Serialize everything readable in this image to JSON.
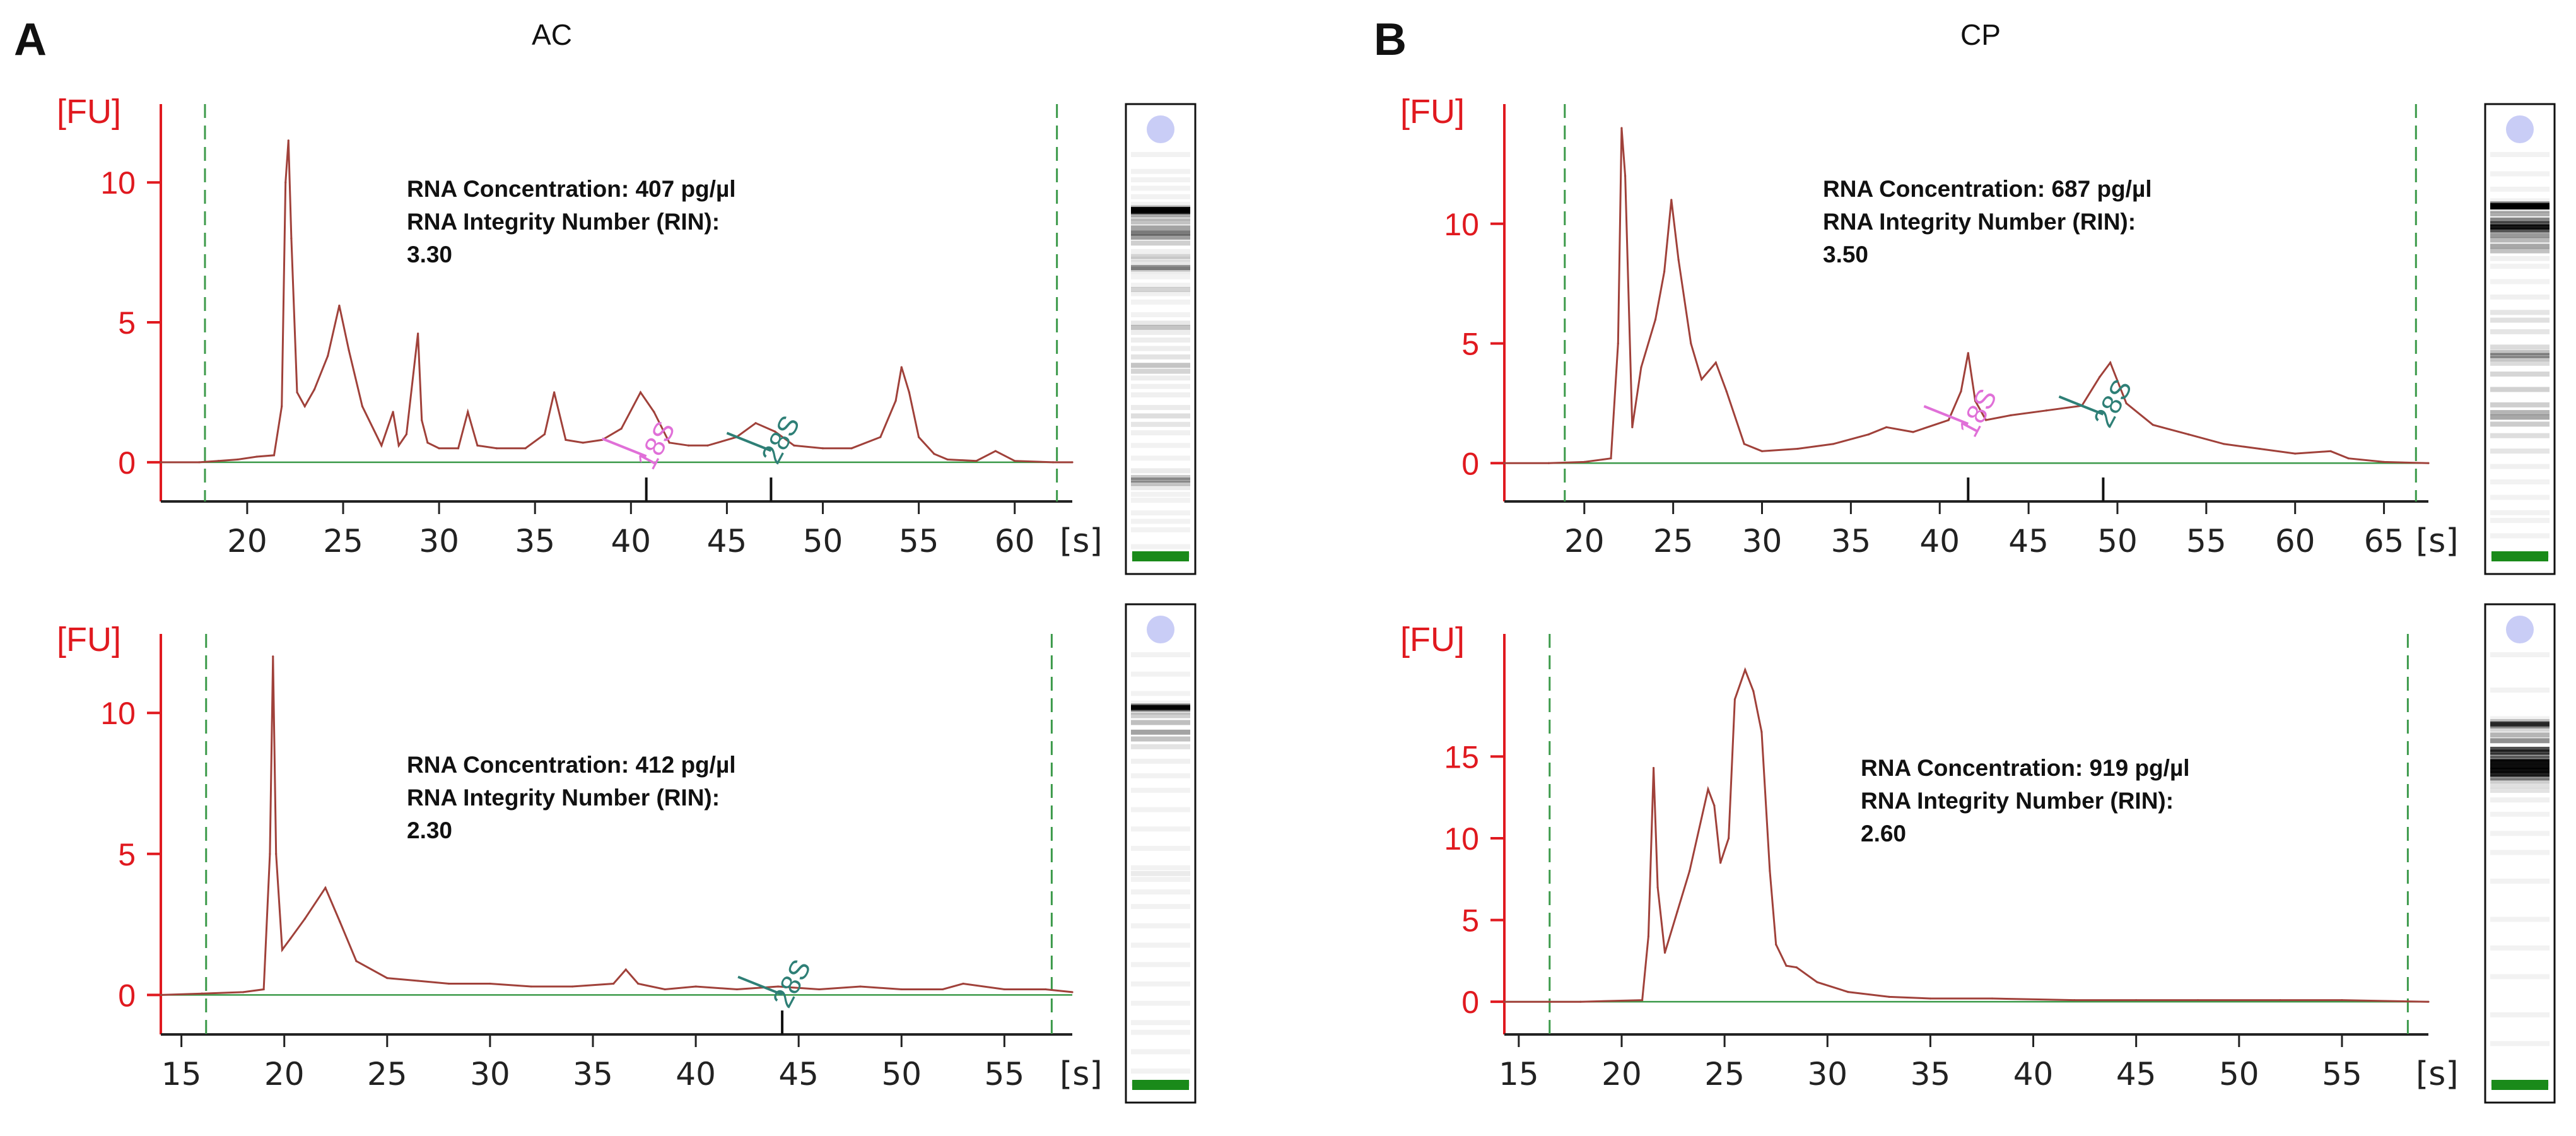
{
  "panels": {
    "A": {
      "letter": "A",
      "title": "AC"
    },
    "B": {
      "letter": "B",
      "title": "CP"
    }
  },
  "colors": {
    "trace": "#a0413a",
    "axis": "#e0191f",
    "baseline": "#3c9a4a",
    "cutoff": "#3c9a4a",
    "marker18S": "#e070d8",
    "marker28S": "#2e7f76",
    "lower_marker_band": "#1a8a1a"
  },
  "chart_data": [
    {
      "id": "ac-top",
      "type": "line",
      "panel": "A",
      "sample": "AC",
      "xlabel": "[s]",
      "ylabel": "[FU]",
      "xlim": [
        15.5,
        63
      ],
      "ylim": [
        -1.4,
        12.8
      ],
      "xticks": [
        20,
        25,
        30,
        35,
        40,
        45,
        50,
        55,
        60
      ],
      "yticks": [
        0,
        5,
        10
      ],
      "cutoffs": [
        17.8,
        62.2
      ],
      "info": [
        "RNA Concentration: 407 pg/µl",
        "RNA Integrity Number (RIN):",
        "3.30"
      ],
      "markers": [
        {
          "label": "18S",
          "x": 40.8,
          "anchor_y": 0.35,
          "color_key": "marker18S"
        },
        {
          "label": "28S",
          "x": 47.3,
          "anchor_y": 0.55,
          "color_key": "marker28S"
        }
      ],
      "series": [
        {
          "name": "electropherogram",
          "x": [
            15.5,
            17.5,
            18.5,
            19.5,
            20.5,
            21.4,
            21.8,
            22.0,
            22.15,
            22.3,
            22.6,
            23.0,
            23.5,
            24.2,
            24.8,
            25.3,
            26.0,
            27.0,
            27.6,
            27.9,
            28.3,
            28.9,
            29.1,
            29.4,
            30.0,
            31.0,
            31.5,
            32.0,
            33.0,
            34.5,
            35.5,
            36.0,
            36.6,
            37.5,
            38.5,
            39.5,
            40.5,
            41.2,
            42.0,
            43.0,
            44.0,
            45.5,
            46.5,
            47.5,
            48.5,
            50.0,
            51.5,
            53.0,
            53.8,
            54.1,
            54.5,
            55.0,
            55.8,
            56.5,
            58.0,
            59.0,
            60.0,
            62.0,
            63.0
          ],
          "y": [
            0.0,
            0.0,
            0.05,
            0.1,
            0.2,
            0.25,
            2.0,
            10.0,
            11.5,
            8.0,
            2.5,
            2.0,
            2.6,
            3.8,
            5.6,
            4.0,
            2.0,
            0.6,
            1.8,
            0.6,
            1.0,
            4.6,
            1.5,
            0.7,
            0.5,
            0.5,
            1.8,
            0.6,
            0.5,
            0.5,
            1.0,
            2.5,
            0.8,
            0.7,
            0.8,
            1.2,
            2.5,
            1.8,
            0.7,
            0.6,
            0.6,
            0.9,
            1.4,
            1.1,
            0.6,
            0.5,
            0.5,
            0.9,
            2.2,
            3.4,
            2.5,
            0.9,
            0.3,
            0.1,
            0.05,
            0.4,
            0.05,
            0.0,
            0.0
          ]
        }
      ]
    },
    {
      "id": "ac-bottom",
      "type": "line",
      "panel": "A",
      "sample": "AC",
      "xlabel": "[s]",
      "ylabel": "[FU]",
      "xlim": [
        14,
        58.3
      ],
      "ylim": [
        -1.4,
        12.8
      ],
      "xticks": [
        15,
        20,
        25,
        30,
        35,
        40,
        45,
        50,
        55
      ],
      "yticks": [
        0,
        5,
        10
      ],
      "cutoffs": [
        16.2,
        57.3
      ],
      "info": [
        "RNA Concentration: 412 pg/µl",
        "RNA Integrity Number (RIN):",
        "2.30"
      ],
      "markers": [
        {
          "label": "28S",
          "x": 44.2,
          "anchor_y": 0.15,
          "color_key": "marker28S"
        }
      ],
      "series": [
        {
          "name": "electropherogram",
          "x": [
            14.0,
            16.0,
            18.0,
            19.0,
            19.3,
            19.45,
            19.6,
            19.9,
            20.3,
            21.0,
            22.0,
            22.7,
            23.5,
            25.0,
            26.5,
            28.0,
            30.0,
            32.0,
            34.0,
            36.0,
            36.6,
            37.2,
            38.5,
            40.0,
            42.0,
            44.0,
            46.0,
            48.0,
            50.0,
            52.0,
            53.0,
            55.0,
            57.0,
            58.3
          ],
          "y": [
            0.0,
            0.05,
            0.1,
            0.2,
            5.0,
            12.0,
            5.0,
            1.6,
            2.0,
            2.7,
            3.8,
            2.6,
            1.2,
            0.6,
            0.5,
            0.4,
            0.4,
            0.3,
            0.3,
            0.4,
            0.9,
            0.4,
            0.2,
            0.3,
            0.2,
            0.3,
            0.2,
            0.3,
            0.2,
            0.2,
            0.4,
            0.2,
            0.2,
            0.1
          ]
        }
      ]
    },
    {
      "id": "cp-top",
      "type": "line",
      "panel": "B",
      "sample": "CP",
      "xlabel": "[s]",
      "ylabel": "[FU]",
      "xlim": [
        15.5,
        67.5
      ],
      "ylim": [
        -1.6,
        15.0
      ],
      "xticks": [
        20,
        25,
        30,
        35,
        40,
        45,
        50,
        55,
        60,
        65
      ],
      "yticks": [
        0,
        5,
        10
      ],
      "cutoffs": [
        18.9,
        66.8
      ],
      "info": [
        "RNA Concentration: 687 pg/µl",
        "RNA Integrity Number (RIN):",
        "3.50"
      ],
      "markers": [
        {
          "label": "18S",
          "x": 41.6,
          "anchor_y": 1.8,
          "color_key": "marker18S"
        },
        {
          "label": "28S",
          "x": 49.2,
          "anchor_y": 2.2,
          "color_key": "marker28S"
        }
      ],
      "series": [
        {
          "name": "electropherogram",
          "x": [
            15.5,
            18.0,
            20.0,
            21.5,
            21.9,
            22.1,
            22.3,
            22.7,
            23.2,
            24.0,
            24.5,
            24.9,
            25.3,
            26.0,
            26.6,
            27.4,
            28.0,
            29.0,
            30.0,
            32.0,
            34.0,
            36.0,
            37.0,
            38.5,
            40.5,
            41.2,
            41.6,
            42.0,
            42.6,
            44.0,
            46.0,
            48.0,
            49.0,
            49.6,
            50.5,
            52.0,
            54.0,
            56.0,
            58.0,
            60.0,
            62.0,
            63.0,
            65.0,
            67.5
          ],
          "y": [
            0.0,
            0.0,
            0.05,
            0.2,
            5.0,
            14.0,
            12.0,
            1.5,
            4.0,
            6.0,
            8.0,
            11.0,
            8.5,
            5.0,
            3.5,
            4.2,
            3.0,
            0.8,
            0.5,
            0.6,
            0.8,
            1.2,
            1.5,
            1.3,
            1.8,
            3.0,
            4.6,
            2.6,
            1.8,
            2.0,
            2.2,
            2.4,
            3.6,
            4.2,
            2.5,
            1.6,
            1.2,
            0.8,
            0.6,
            0.4,
            0.5,
            0.2,
            0.05,
            0.0
          ]
        }
      ]
    },
    {
      "id": "cp-bottom",
      "type": "line",
      "panel": "B",
      "sample": "CP",
      "xlabel": "[s]",
      "ylabel": "[FU]",
      "xlim": [
        14.3,
        59.2
      ],
      "ylim": [
        -2.0,
        22.5
      ],
      "xticks": [
        15,
        20,
        25,
        30,
        35,
        40,
        45,
        50,
        55
      ],
      "yticks": [
        0,
        5,
        10,
        15
      ],
      "cutoffs": [
        16.5,
        58.2
      ],
      "info": [
        "RNA Concentration: 919 pg/µl",
        "RNA Integrity Number (RIN):",
        "2.60"
      ],
      "markers": [],
      "series": [
        {
          "name": "electropherogram",
          "x": [
            14.3,
            18.0,
            21.0,
            21.3,
            21.55,
            21.75,
            22.1,
            22.7,
            23.3,
            24.2,
            24.5,
            24.8,
            25.2,
            25.5,
            26.0,
            26.4,
            26.8,
            27.2,
            27.5,
            28.0,
            28.5,
            29.5,
            31.0,
            33.0,
            35.0,
            38.0,
            42.0,
            45.0,
            48.0,
            52.0,
            55.0,
            59.2
          ],
          "y": [
            0.0,
            0.0,
            0.1,
            4.0,
            14.3,
            7.0,
            3.0,
            5.5,
            8.0,
            13.0,
            12.0,
            8.5,
            10.0,
            18.5,
            20.3,
            19.0,
            16.5,
            8.0,
            3.5,
            2.2,
            2.1,
            1.2,
            0.6,
            0.3,
            0.2,
            0.2,
            0.1,
            0.1,
            0.1,
            0.1,
            0.1,
            0.0
          ]
        }
      ]
    }
  ]
}
